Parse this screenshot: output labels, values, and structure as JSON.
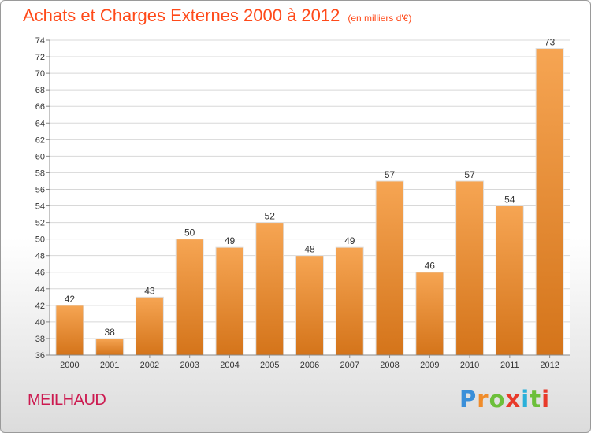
{
  "chart_data": {
    "type": "bar",
    "title": "Achats et Charges Externes 2000 à 2012",
    "subtitle": "(en milliers d'€)",
    "categories": [
      "2000",
      "2001",
      "2002",
      "2003",
      "2004",
      "2005",
      "2006",
      "2007",
      "2008",
      "2009",
      "2010",
      "2011",
      "2012"
    ],
    "values": [
      42,
      38,
      43,
      50,
      49,
      52,
      48,
      49,
      57,
      46,
      57,
      54,
      73
    ],
    "ylim": [
      36,
      74
    ],
    "yticks": [
      36,
      38,
      40,
      42,
      44,
      46,
      48,
      50,
      52,
      54,
      56,
      58,
      60,
      62,
      64,
      66,
      68,
      70,
      72,
      74
    ],
    "grid": true,
    "bar_color": "#f08c2a"
  },
  "commune": "MEILHAUD",
  "brand": {
    "letters": [
      "P",
      "r",
      "o",
      "x",
      "i",
      "t",
      "i"
    ],
    "colors": [
      "#3a8fd9",
      "#f08c2a",
      "#6cbf3a",
      "#e83a2a",
      "#2ab0d9",
      "#6cbf3a",
      "#e83a2a"
    ]
  }
}
